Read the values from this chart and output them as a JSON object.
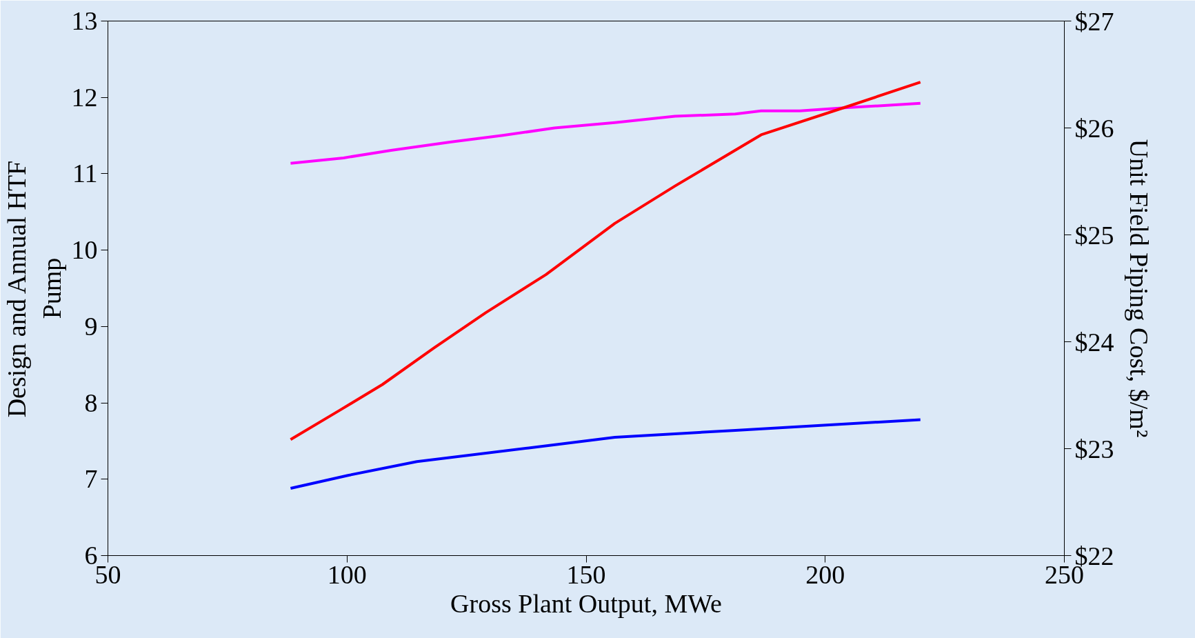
{
  "chart_data": {
    "type": "line",
    "xlabel": "Gross Plant Output, MWe",
    "ylabel": "Design and Annual HTF\nPump",
    "y2label": "Unit Field Piping Cost, $/m²",
    "xlim": [
      50,
      250
    ],
    "xticks": [
      50,
      100,
      150,
      200,
      250
    ],
    "ylim": [
      6,
      13
    ],
    "yticks": [
      6,
      7,
      8,
      9,
      10,
      11,
      12,
      13
    ],
    "y2lim": [
      22,
      27
    ],
    "y2ticks": [
      {
        "value": 22,
        "label": "$22"
      },
      {
        "value": 23,
        "label": "$23"
      },
      {
        "value": 24,
        "label": "$24"
      },
      {
        "value": 25,
        "label": "$25"
      },
      {
        "value": 26,
        "label": "$26"
      },
      {
        "value": 27,
        "label": "$27"
      }
    ],
    "grid": false,
    "marker": "none",
    "line_style": "solid",
    "series": [
      {
        "color": "#ff00ff",
        "axis": "y2",
        "x": [
          88.2,
          99.3,
          109.2,
          121.8,
          132.6,
          143.4,
          156.0,
          168.6,
          181.2,
          186.6,
          194.7,
          204.6,
          219.9
        ],
        "values": [
          25.67,
          25.72,
          25.79,
          25.87,
          25.93,
          26.0,
          26.05,
          26.11,
          26.13,
          26.16,
          26.16,
          26.19,
          26.23
        ]
      },
      {
        "color": "#ff0000",
        "x": [
          88.2,
          98.4,
          107.4,
          118.2,
          129.0,
          141.6,
          156.0,
          168.6,
          186.6,
          204.6,
          219.9
        ],
        "values": [
          7.52,
          7.9,
          8.24,
          8.72,
          9.18,
          9.68,
          10.35,
          10.84,
          11.51,
          11.88,
          12.2
        ]
      },
      {
        "color": "#0000ff",
        "x": [
          88.2,
          100.2,
          114.6,
          138.0,
          156.0,
          181.2,
          219.9
        ],
        "values": [
          6.88,
          7.05,
          7.23,
          7.41,
          7.55,
          7.64,
          7.78
        ]
      }
    ]
  }
}
